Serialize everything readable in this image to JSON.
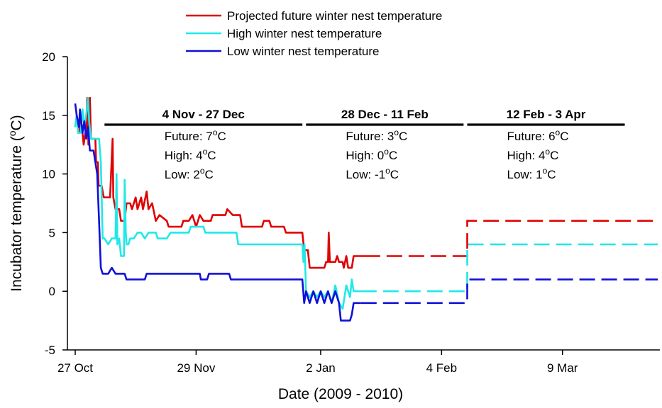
{
  "chart_data": {
    "type": "line",
    "xlabel": "Date (2009 - 2010)",
    "ylabel": "Incubator temperature (",
    "ylabel_unit": "o",
    "ylabel_tail": "C)",
    "ylim": [
      -5,
      20
    ],
    "yticks": [
      "-5",
      "0",
      "5",
      "10",
      "15",
      "20"
    ],
    "x_day_range": [
      0,
      159
    ],
    "xticks": [
      {
        "day": 0,
        "label": "27 Oct"
      },
      {
        "day": 33,
        "label": "29 Nov"
      },
      {
        "day": 67,
        "label": "2 Jan"
      },
      {
        "day": 100,
        "label": "4 Feb"
      },
      {
        "day": 133,
        "label": "9 Mar"
      }
    ],
    "legend": {
      "position": "top-center"
    },
    "series": [
      {
        "name": "Projected future winter nest temperature",
        "color": "#e00000",
        "points": [
          [
            0,
            14
          ],
          [
            0.4,
            15
          ],
          [
            1,
            13.5
          ],
          [
            1.5,
            14.5
          ],
          [
            2,
            13.5
          ],
          [
            2.3,
            12.5
          ],
          [
            3,
            14
          ],
          [
            3.3,
            16.5
          ],
          [
            3.6,
            12.5
          ],
          [
            4,
            16.5
          ],
          [
            4.3,
            13
          ],
          [
            5.5,
            13
          ],
          [
            5.7,
            11
          ],
          [
            6.2,
            11
          ],
          [
            6.4,
            9
          ],
          [
            7.2,
            9
          ],
          [
            7.8,
            8
          ],
          [
            9.5,
            8
          ],
          [
            10.2,
            13
          ],
          [
            10.4,
            8
          ],
          [
            11,
            7
          ],
          [
            12,
            7
          ],
          [
            12.5,
            6
          ],
          [
            13.5,
            6
          ],
          [
            14,
            7.5
          ],
          [
            15,
            7.5
          ],
          [
            15.5,
            7
          ],
          [
            16.5,
            8
          ],
          [
            17,
            7
          ],
          [
            18,
            8
          ],
          [
            18.5,
            7
          ],
          [
            19.5,
            8.5
          ],
          [
            20,
            7
          ],
          [
            21,
            7.5
          ],
          [
            22,
            6
          ],
          [
            23,
            6.5
          ],
          [
            25,
            6
          ],
          [
            25.5,
            5.5
          ],
          [
            29,
            5.5
          ],
          [
            29.5,
            6
          ],
          [
            31,
            6
          ],
          [
            32,
            6.5
          ],
          [
            33,
            5.5
          ],
          [
            34,
            6.5
          ],
          [
            35,
            6
          ],
          [
            37,
            6
          ],
          [
            37.5,
            6.5
          ],
          [
            41,
            6.5
          ],
          [
            41.5,
            7
          ],
          [
            43,
            6.5
          ],
          [
            45,
            6.5
          ],
          [
            45.5,
            5.5
          ],
          [
            51,
            5.5
          ],
          [
            51.5,
            6
          ],
          [
            53,
            6
          ],
          [
            53.5,
            5.5
          ],
          [
            57,
            5.5
          ],
          [
            57.5,
            5
          ],
          [
            62,
            5
          ],
          [
            62.5,
            3.5
          ],
          [
            63.5,
            3.5
          ],
          [
            64,
            2
          ],
          [
            68,
            2
          ],
          [
            68.5,
            2.5
          ],
          [
            69,
            2.5
          ],
          [
            69.2,
            5
          ],
          [
            69.5,
            2.5
          ],
          [
            71,
            2.5
          ],
          [
            71.5,
            3
          ],
          [
            72,
            2.5
          ],
          [
            73,
            2.5
          ],
          [
            73.3,
            2
          ],
          [
            74,
            3
          ],
          [
            74.5,
            2
          ],
          [
            75.5,
            2
          ],
          [
            76,
            3
          ],
          [
            79,
            3
          ]
        ],
        "projection": [
          [
            79,
            3
          ],
          [
            107,
            3
          ],
          [
            107,
            6
          ],
          [
            159,
            6
          ]
        ]
      },
      {
        "name": "High winter nest temperature",
        "color": "#20e8e8",
        "points": [
          [
            0,
            14
          ],
          [
            0.4,
            15
          ],
          [
            0.8,
            13.5
          ],
          [
            1.5,
            13.5
          ],
          [
            2,
            15.5
          ],
          [
            2.5,
            14
          ],
          [
            3,
            15
          ],
          [
            3.5,
            16.5
          ],
          [
            3.8,
            14.5
          ],
          [
            4.3,
            13
          ],
          [
            6.5,
            13
          ],
          [
            7,
            11
          ],
          [
            7.5,
            4.5
          ],
          [
            8,
            4.5
          ],
          [
            9,
            4
          ],
          [
            10,
            4.5
          ],
          [
            11,
            4.5
          ],
          [
            11.3,
            10
          ],
          [
            11.5,
            4
          ],
          [
            12,
            4.5
          ],
          [
            12.5,
            3
          ],
          [
            13.3,
            3
          ],
          [
            13.5,
            9.5
          ],
          [
            13.8,
            5
          ],
          [
            14,
            4
          ],
          [
            14.5,
            4
          ],
          [
            15,
            4.5
          ],
          [
            16,
            4.5
          ],
          [
            17,
            5
          ],
          [
            18,
            5
          ],
          [
            19,
            4.5
          ],
          [
            20,
            5
          ],
          [
            22,
            5
          ],
          [
            22.5,
            4.5
          ],
          [
            25,
            4.5
          ],
          [
            26,
            5
          ],
          [
            31,
            5
          ],
          [
            31.5,
            5.5
          ],
          [
            35,
            5.5
          ],
          [
            35.5,
            5
          ],
          [
            44,
            5
          ],
          [
            44.5,
            4
          ],
          [
            62,
            4
          ],
          [
            62.3,
            2.5
          ],
          [
            62.6,
            4
          ],
          [
            63,
            0
          ],
          [
            64,
            -0.5
          ],
          [
            65,
            0
          ],
          [
            66,
            -0.5
          ],
          [
            67,
            0
          ],
          [
            68,
            -0.5
          ],
          [
            69,
            0
          ],
          [
            70,
            -1
          ],
          [
            71,
            0.5
          ],
          [
            72,
            -1
          ],
          [
            73,
            -1.5
          ],
          [
            73.5,
            -0.5
          ],
          [
            74,
            0.5
          ],
          [
            75,
            -0.5
          ],
          [
            75.5,
            1
          ],
          [
            76,
            0
          ],
          [
            78,
            0
          ]
        ],
        "projection": [
          [
            78,
            0
          ],
          [
            107,
            0
          ],
          [
            107,
            4
          ],
          [
            159,
            4
          ]
        ]
      },
      {
        "name": "Low winter nest temperature",
        "color": "#1010d8",
        "points": [
          [
            0,
            16
          ],
          [
            0.4,
            15
          ],
          [
            1,
            14
          ],
          [
            1.3,
            15.5
          ],
          [
            2,
            13.5
          ],
          [
            2.5,
            14.5
          ],
          [
            3,
            13
          ],
          [
            3.5,
            14
          ],
          [
            4,
            12
          ],
          [
            5,
            12
          ],
          [
            5.5,
            11
          ],
          [
            6,
            10
          ],
          [
            6.5,
            6
          ],
          [
            7,
            2
          ],
          [
            7.5,
            1.5
          ],
          [
            9,
            1.5
          ],
          [
            10,
            2
          ],
          [
            11,
            1.5
          ],
          [
            12,
            1.5
          ],
          [
            13.5,
            1.5
          ],
          [
            14,
            1
          ],
          [
            19,
            1
          ],
          [
            19.5,
            1.5
          ],
          [
            34,
            1.5
          ],
          [
            34.3,
            1
          ],
          [
            36,
            1
          ],
          [
            36.5,
            1.5
          ],
          [
            42,
            1.5
          ],
          [
            42.5,
            1
          ],
          [
            62,
            1
          ],
          [
            62.5,
            -1
          ],
          [
            63,
            0
          ],
          [
            64,
            -1
          ],
          [
            65,
            0
          ],
          [
            66,
            -1
          ],
          [
            67,
            0
          ],
          [
            68,
            -1
          ],
          [
            69,
            0
          ],
          [
            70,
            -1
          ],
          [
            71,
            0
          ],
          [
            72,
            -1
          ],
          [
            72.5,
            -2.5
          ],
          [
            75,
            -2.5
          ],
          [
            75.5,
            -2
          ],
          [
            76,
            -1
          ],
          [
            78,
            -1
          ]
        ],
        "projection": [
          [
            78,
            -1
          ],
          [
            107,
            -1
          ],
          [
            107,
            1
          ],
          [
            159,
            1
          ]
        ]
      }
    ],
    "periods": [
      {
        "title": "4 Nov - 27 Dec",
        "start_day": 8,
        "end_day": 62,
        "lines": [
          {
            "label": "Future: 7",
            "unit": "o",
            "tail": "C"
          },
          {
            "label": "High: 4",
            "unit": "o",
            "tail": "C"
          },
          {
            "label": "Low: 2",
            "unit": "o",
            "tail": "C"
          }
        ]
      },
      {
        "title": "28 Dec - 11 Feb",
        "start_day": 63,
        "end_day": 106,
        "lines": [
          {
            "label": "Future: 3",
            "unit": "o",
            "tail": "C"
          },
          {
            "label": "High: 0",
            "unit": "o",
            "tail": "C"
          },
          {
            "label": "Low: -1",
            "unit": "o",
            "tail": "C"
          }
        ]
      },
      {
        "title": "12 Feb - 3 Apr",
        "start_day": 107,
        "end_day": 150,
        "lines": [
          {
            "label": "Future: 6",
            "unit": "o",
            "tail": "C"
          },
          {
            "label": "High: 4",
            "unit": "o",
            "tail": "C"
          },
          {
            "label": "Low: 1",
            "unit": "o",
            "tail": "C"
          }
        ]
      }
    ]
  }
}
